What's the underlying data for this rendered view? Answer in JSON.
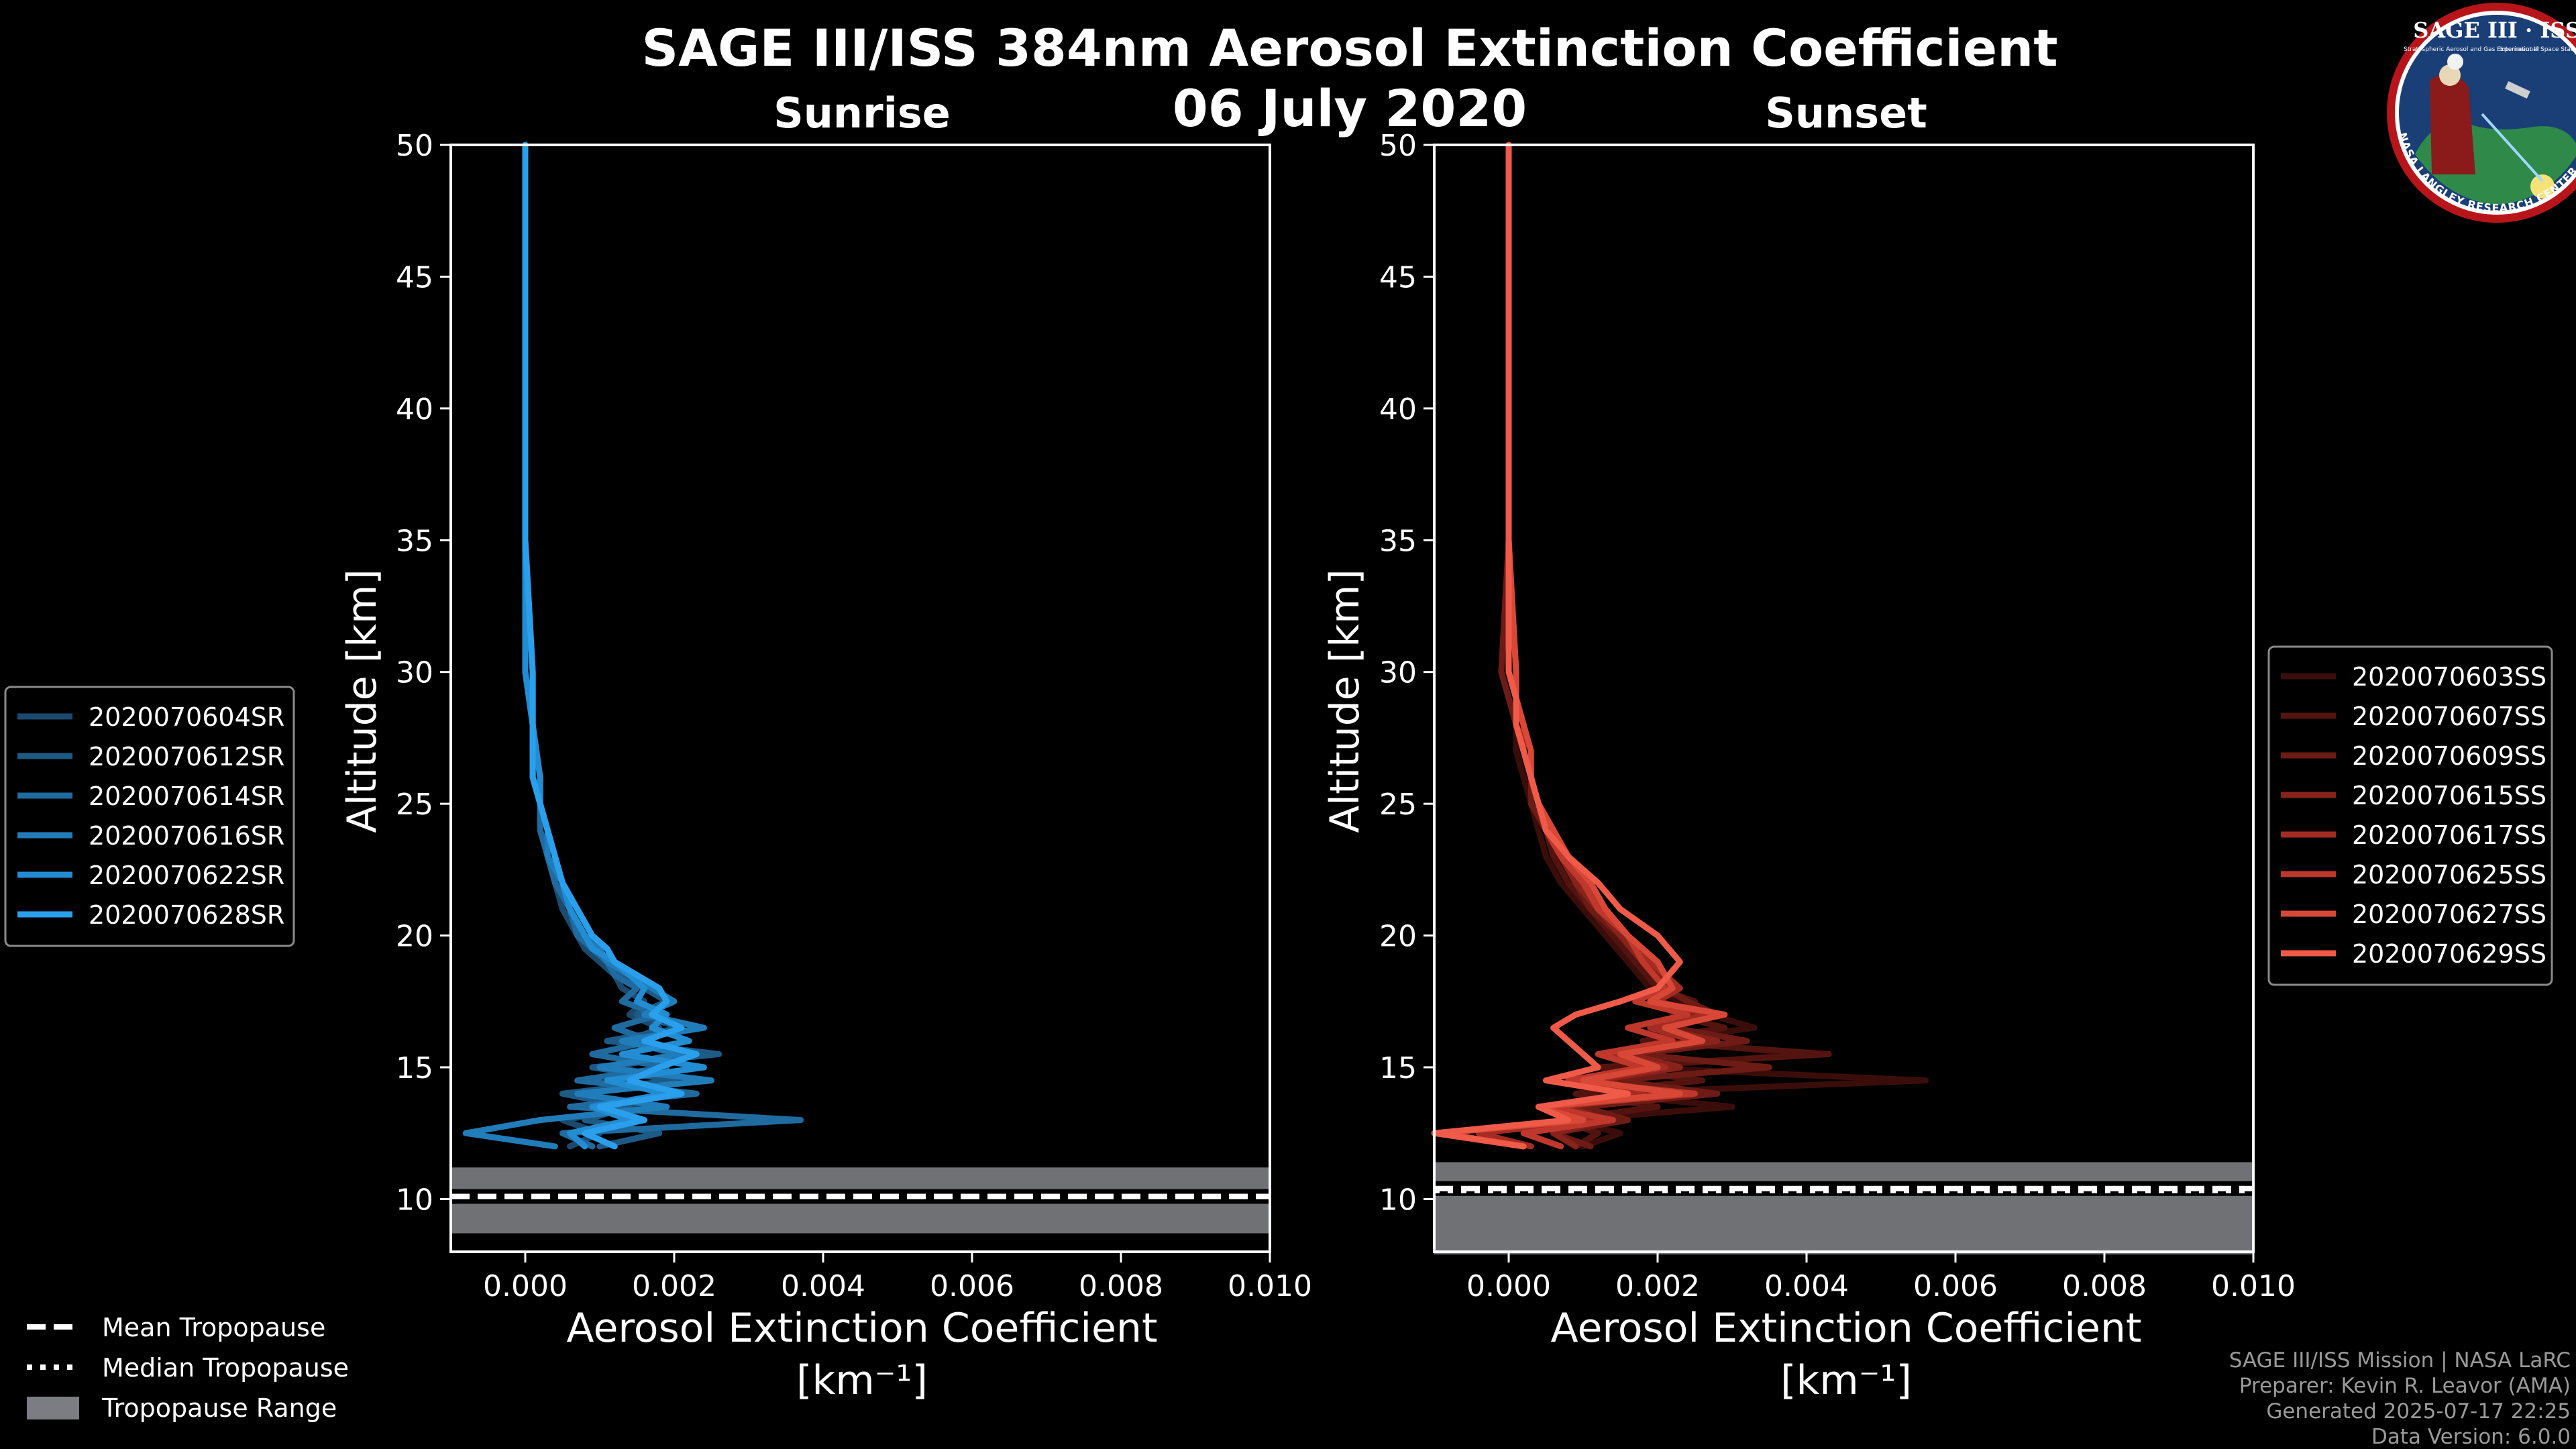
{
  "title_line1": "SAGE III/ISS 384nm Aerosol Extinction Coefficient",
  "title_line2": "06 July 2020",
  "logo": {
    "top_text": "SAGE III · ISS",
    "small_left": "Stratospheric Aerosol and Gas Experiment III",
    "small_right": "International Space Station",
    "ring_text": "BALL · NASA LANGLEY RESEARCH CENTER · TAS-I · ESA"
  },
  "credits": {
    "line1": "SAGE III/ISS Mission | NASA LaRC",
    "line2": "Preparer: Kevin R. Leavor (AMA)",
    "line3": "Generated 2025-07-17 22:25",
    "line4": "Data Version: 6.0.0"
  },
  "bottom_legend": {
    "mean": "Mean Tropopause",
    "median": "Median Tropopause",
    "range": "Tropopause Range"
  },
  "chart_data": [
    {
      "type": "line",
      "title": "Sunrise",
      "xlabel": "Aerosol Extinction Coefficient",
      "xlabel_unit": "[km⁻¹]",
      "ylabel": "Altitude [km]",
      "xlim": [
        -0.001,
        0.01
      ],
      "ylim": [
        8,
        50
      ],
      "xticks": [
        0,
        0.002,
        0.004,
        0.006,
        0.008,
        0.01
      ],
      "xtick_labels": [
        "0.000",
        "0.002",
        "0.004",
        "0.006",
        "0.008",
        "0.010"
      ],
      "yticks": [
        10,
        15,
        20,
        25,
        30,
        35,
        40,
        45,
        50
      ],
      "ytick_labels": [
        "10",
        "15",
        "20",
        "25",
        "30",
        "35",
        "40",
        "45",
        "50"
      ],
      "tropopause": {
        "mean": 10.1,
        "median": 10.1,
        "range": [
          8.7,
          11.2
        ]
      },
      "legend_position": "outside-left",
      "series": [
        {
          "name": "2020070604SR",
          "color": "#1b4a6e",
          "alt": [
            50,
            45,
            40,
            35,
            30,
            28,
            26,
            25,
            24,
            23,
            22,
            21,
            20,
            19.5,
            19,
            18.5,
            18,
            17.5,
            17,
            16.5,
            16,
            15.5,
            15,
            14.5,
            14,
            13.5,
            13,
            12.5,
            12
          ],
          "x": [
            0,
            0,
            0,
            0,
            0,
            0.0001,
            0.0001,
            0.0002,
            0.0002,
            0.0003,
            0.0004,
            0.0005,
            0.0007,
            0.0008,
            0.001,
            0.0012,
            0.0013,
            0.0016,
            0.0014,
            0.0018,
            0.0014,
            0.002,
            0.0012,
            0.0022,
            0.0008,
            0.0016,
            0.0005,
            0.001,
            0.0006
          ]
        },
        {
          "name": "2020070612SR",
          "color": "#1d5b87",
          "alt": [
            50,
            45,
            40,
            35,
            30,
            28,
            26,
            25,
            24,
            23,
            22,
            21,
            20,
            19.5,
            19,
            18.5,
            18,
            17.5,
            17,
            16.5,
            16,
            15.5,
            15,
            14.5,
            14,
            13.5,
            13,
            12.5,
            12
          ],
          "x": [
            0,
            0,
            0,
            0,
            0.0001,
            0.0001,
            0.0002,
            0.0002,
            0.0003,
            0.0004,
            0.0004,
            0.0006,
            0.0008,
            0.0009,
            0.0011,
            0.0013,
            0.0016,
            0.0019,
            0.0015,
            0.0021,
            0.0011,
            0.0026,
            0.0009,
            0.002,
            0.0005,
            0.0014,
            0.0008,
            0.0018,
            0.001
          ]
        },
        {
          "name": "2020070614SR",
          "color": "#1f6ba0",
          "alt": [
            50,
            45,
            40,
            35,
            30,
            28,
            26,
            25,
            24,
            23,
            22,
            21,
            20,
            19.5,
            19,
            18.5,
            18,
            17.5,
            17,
            16.5,
            16,
            15.5,
            15,
            14.5,
            14,
            13.5,
            13,
            12.5,
            12
          ],
          "x": [
            0,
            0,
            0,
            0,
            0,
            0.0001,
            0.0001,
            0.0002,
            0.0002,
            0.0003,
            0.0004,
            0.0006,
            0.0007,
            0.0009,
            0.0011,
            0.0012,
            0.0015,
            0.0013,
            0.0018,
            0.0012,
            0.0017,
            0.0009,
            0.0019,
            0.0007,
            0.0023,
            0.0006,
            0.0037,
            0.0005,
            0.0009
          ]
        },
        {
          "name": "2020070616SR",
          "color": "#217cba",
          "alt": [
            50,
            45,
            40,
            35,
            30,
            28,
            26,
            25,
            24,
            23,
            22,
            21,
            20,
            19.5,
            19,
            18.5,
            18,
            17.5,
            17,
            16.5,
            16,
            15.5,
            15,
            14.5,
            14,
            13.5,
            13,
            12.5,
            12
          ],
          "x": [
            0,
            0,
            0,
            0,
            0.0001,
            0.0001,
            0.0001,
            0.0002,
            0.0003,
            0.0003,
            0.0005,
            0.0006,
            0.0008,
            0.001,
            0.0011,
            0.0014,
            0.0017,
            0.002,
            0.0016,
            0.0024,
            0.0013,
            0.0021,
            0.001,
            0.0025,
            0.0007,
            0.0019,
            0.0002,
            -0.0008,
            0.0004
          ]
        },
        {
          "name": "2020070622SR",
          "color": "#238dd3",
          "alt": [
            50,
            45,
            40,
            35,
            30,
            28,
            26,
            25,
            24,
            23,
            22,
            21,
            20,
            19.5,
            19,
            18.5,
            18,
            17.5,
            17,
            16.5,
            16,
            15.5,
            15,
            14.5,
            14,
            13.5,
            13,
            12.5,
            12
          ],
          "x": [
            0,
            0,
            0,
            0,
            0,
            0.0001,
            0.0002,
            0.0002,
            0.0003,
            0.0004,
            0.0005,
            0.0006,
            0.0008,
            0.0009,
            0.0012,
            0.0014,
            0.0016,
            0.0015,
            0.0019,
            0.0017,
            0.0022,
            0.0013,
            0.0024,
            0.0011,
            0.0019,
            0.0009,
            0.0014,
            0.0006,
            0.0008
          ]
        },
        {
          "name": "2020070628SR",
          "color": "#2aa0ec",
          "alt": [
            50,
            45,
            40,
            35,
            30,
            28,
            26,
            25,
            24,
            23,
            22,
            21,
            20,
            19.5,
            19,
            18.5,
            18,
            17.5,
            17,
            16.5,
            16,
            15.5,
            15,
            14.5,
            14,
            13.5,
            13,
            12.5,
            12
          ],
          "x": [
            0,
            0,
            0,
            0,
            0.0001,
            0.0001,
            0.0001,
            0.0002,
            0.0003,
            0.0004,
            0.0005,
            0.0007,
            0.0009,
            0.0011,
            0.0012,
            0.0015,
            0.0018,
            0.0019,
            0.0017,
            0.0021,
            0.0016,
            0.0023,
            0.0018,
            0.0014,
            0.0021,
            0.001,
            0.0016,
            0.0008,
            0.0012
          ]
        }
      ]
    },
    {
      "type": "line",
      "title": "Sunset",
      "xlabel": "Aerosol Extinction Coefficient",
      "xlabel_unit": "[km⁻¹]",
      "ylabel": "Altitude [km]",
      "xlim": [
        -0.001,
        0.01
      ],
      "ylim": [
        8,
        50
      ],
      "xticks": [
        0,
        0.002,
        0.004,
        0.006,
        0.008,
        0.01
      ],
      "xtick_labels": [
        "0.000",
        "0.002",
        "0.004",
        "0.006",
        "0.008",
        "0.010"
      ],
      "yticks": [
        10,
        15,
        20,
        25,
        30,
        35,
        40,
        45,
        50
      ],
      "ytick_labels": [
        "10",
        "15",
        "20",
        "25",
        "30",
        "35",
        "40",
        "45",
        "50"
      ],
      "tropopause": {
        "mean": 10.4,
        "median": 10.3,
        "range": [
          7.9,
          11.4
        ]
      },
      "legend_position": "outside-right",
      "series": [
        {
          "name": "2020070603SS",
          "color": "#3a0d0b",
          "alt": [
            50,
            45,
            40,
            35,
            30,
            29,
            28,
            27,
            26,
            25,
            24,
            23,
            22,
            21,
            20,
            19,
            18,
            17.5,
            17,
            16.5,
            16,
            15.5,
            15,
            14.5,
            14,
            13.5,
            13,
            12.5,
            12
          ],
          "x": [
            0,
            0,
            0,
            0,
            -0.0001,
            0.0,
            0.0001,
            0.0001,
            0.0002,
            0.0003,
            0.0004,
            0.0005,
            0.0007,
            0.001,
            0.0013,
            0.0016,
            0.0019,
            0.0023,
            0.0027,
            0.0033,
            0.002,
            0.004,
            0.0016,
            0.0056,
            0.0012,
            0.003,
            0.0008,
            0.0015,
            0.001
          ]
        },
        {
          "name": "2020070607SS",
          "color": "#531410",
          "alt": [
            50,
            45,
            40,
            35,
            30,
            29,
            28,
            27,
            26,
            25,
            24,
            23,
            22,
            21,
            20,
            19,
            18,
            17.5,
            17,
            16.5,
            16,
            15.5,
            15,
            14.5,
            14,
            13.5,
            13,
            12.5,
            12
          ],
          "x": [
            0,
            0,
            0,
            0,
            0.0001,
            0.0001,
            0.0002,
            0.0002,
            0.0003,
            0.0004,
            0.0005,
            0.0006,
            0.0008,
            0.0011,
            0.0014,
            0.0017,
            0.002,
            0.0025,
            0.0022,
            0.0029,
            0.0018,
            0.0043,
            0.0012,
            0.0026,
            0.0009,
            0.002,
            0.0007,
            0.0012,
            0.0009
          ]
        },
        {
          "name": "2020070609SS",
          "color": "#6d1b15",
          "alt": [
            50,
            45,
            40,
            35,
            30,
            29,
            28,
            27,
            26,
            25,
            24,
            23,
            22,
            21,
            20,
            19,
            18,
            17.5,
            17,
            16.5,
            16,
            15.5,
            15,
            14.5,
            14,
            13.5,
            13,
            12.5,
            12
          ],
          "x": [
            0,
            0,
            0,
            0,
            -0.0001,
            0,
            0.0001,
            0.0002,
            0.0003,
            0.0003,
            0.0005,
            0.0007,
            0.0009,
            0.0011,
            0.0015,
            0.0018,
            0.0021,
            0.0024,
            0.0028,
            0.0022,
            0.0032,
            0.0017,
            0.0035,
            0.0014,
            0.0028,
            0.001,
            0.0016,
            0.0006,
            0.0011
          ]
        },
        {
          "name": "2020070615SS",
          "color": "#88231b",
          "alt": [
            50,
            45,
            40,
            35,
            30,
            29,
            28,
            27,
            26,
            25,
            24,
            23,
            22,
            21,
            20,
            19,
            18,
            17.5,
            17,
            16.5,
            16,
            15.5,
            15,
            14.5,
            14,
            13.5,
            13,
            12.5,
            12
          ],
          "x": [
            0,
            0,
            0,
            0,
            0,
            0.0001,
            0.0001,
            0.0002,
            0.0003,
            0.0004,
            0.0005,
            0.0007,
            0.0009,
            0.0012,
            0.0015,
            0.0018,
            0.0022,
            0.0019,
            0.0026,
            0.002,
            0.0028,
            0.0016,
            0.0023,
            0.0012,
            0.002,
            0.0008,
            0.0013,
            0.0006,
            0.0009
          ]
        },
        {
          "name": "2020070617SS",
          "color": "#a42c22",
          "alt": [
            50,
            45,
            40,
            35,
            30,
            29,
            28,
            27,
            26,
            25,
            24,
            23,
            22,
            21,
            20,
            19,
            18,
            17.5,
            17,
            16.5,
            16,
            15.5,
            15,
            14.5,
            14,
            13.5,
            13,
            12.5,
            12
          ],
          "x": [
            0,
            0,
            0,
            0,
            0.0001,
            0.0001,
            0.0002,
            0.0002,
            0.0003,
            0.0004,
            0.0006,
            0.0008,
            0.001,
            0.0013,
            0.0016,
            0.0019,
            0.0023,
            0.002,
            0.0027,
            0.0019,
            0.0025,
            0.0014,
            0.0021,
            0.0011,
            0.0018,
            0.0007,
            0.0012,
            -0.0004,
            0.0003
          ]
        },
        {
          "name": "2020070625SS",
          "color": "#c0372b",
          "alt": [
            50,
            45,
            40,
            35,
            30,
            29,
            28,
            27,
            26,
            25,
            24,
            23,
            22,
            21,
            20,
            19,
            18,
            17.5,
            17,
            16.5,
            16,
            15.5,
            15,
            14.5,
            14,
            13.5,
            13,
            12.5,
            12
          ],
          "x": [
            0,
            0,
            0,
            0,
            0,
            0.0001,
            0.0001,
            0.0002,
            0.0003,
            0.0004,
            0.0005,
            0.0007,
            0.001,
            0.0012,
            0.0016,
            0.0018,
            0.0021,
            0.0017,
            0.0024,
            0.0016,
            0.0022,
            0.0012,
            0.0018,
            0.0008,
            0.0025,
            0.0005,
            0.0014,
            0.0002,
            0.0007
          ]
        },
        {
          "name": "2020070627SS",
          "color": "#d94837",
          "alt": [
            50,
            45,
            40,
            35,
            30,
            29,
            28,
            27,
            26,
            25,
            24,
            23,
            22,
            21,
            20,
            19,
            18,
            17.5,
            17,
            16.5,
            16,
            15.5,
            15,
            14.5,
            14,
            13.5,
            13,
            12.5,
            12
          ],
          "x": [
            0,
            0,
            0,
            0,
            0.0001,
            0.0001,
            0.0002,
            0.0003,
            0.0003,
            0.0004,
            0.0006,
            0.0008,
            0.0011,
            0.0013,
            0.0016,
            0.002,
            0.0022,
            0.0019,
            0.0029,
            0.0021,
            0.0026,
            0.0015,
            0.002,
            0.001,
            0.0023,
            0.0004,
            0.001,
            -0.0009,
            0.0002
          ]
        },
        {
          "name": "2020070629SS",
          "color": "#f05a48",
          "alt": [
            50,
            45,
            40,
            35,
            30,
            29,
            28,
            27,
            26,
            25,
            24,
            23,
            22,
            21,
            20,
            19,
            18,
            17.5,
            17,
            16.5,
            16,
            15.5,
            15,
            14.5,
            14,
            13.5,
            13,
            12.5,
            12
          ],
          "x": [
            0,
            0,
            0,
            0,
            0,
            0.0001,
            0.0001,
            0.0002,
            0.0003,
            0.0004,
            0.0005,
            0.0008,
            0.0012,
            0.0015,
            0.002,
            0.0023,
            0.002,
            0.0015,
            0.0009,
            0.0006,
            0.0008,
            0.001,
            0.0012,
            0.0005,
            0.0016,
            0.0004,
            0.0008,
            -0.001,
            0.0002
          ]
        }
      ]
    }
  ]
}
